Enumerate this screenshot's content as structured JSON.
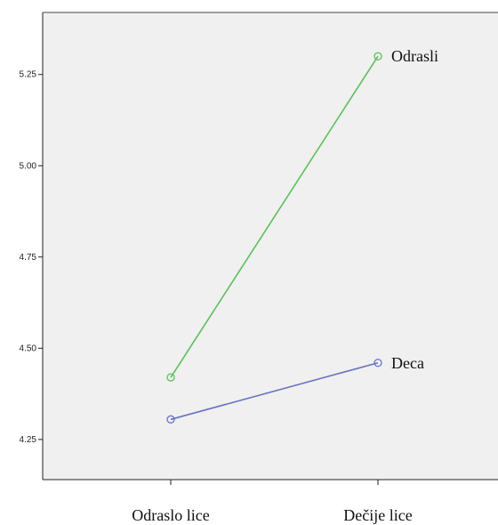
{
  "chart_data": {
    "type": "line",
    "title": "",
    "xlabel": "",
    "ylabel": "",
    "categories": [
      "Odraslo lice",
      "Dečije lice"
    ],
    "ylim": [
      4.14,
      5.42
    ],
    "yticks": [
      4.25,
      4.5,
      4.75,
      5.0,
      5.25
    ],
    "ytick_labels": [
      "4.25",
      "4.50",
      "4.75",
      "5.00",
      "5.25"
    ],
    "grid": false,
    "legend": "inline labels at line ends",
    "background_color": "#f0f0f0",
    "series": [
      {
        "name": "Odrasli",
        "values": [
          4.42,
          5.3
        ],
        "color": "#5cbf5c"
      },
      {
        "name": "Deca",
        "values": [
          4.305,
          4.46
        ],
        "color": "#6673bf"
      }
    ]
  }
}
